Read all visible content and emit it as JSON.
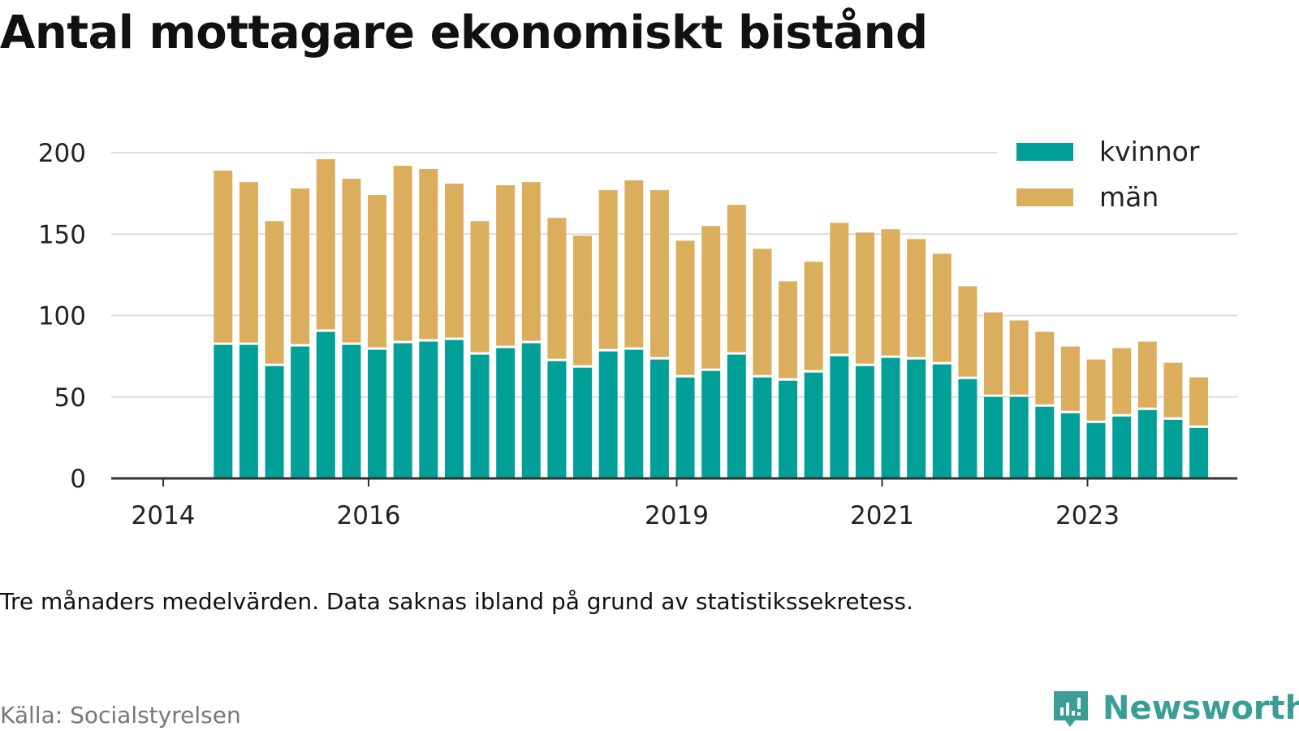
{
  "title": "Antal mottagare ekonomiskt bistånd",
  "note": "Tre månaders medelvärden. Data saknas ibland på grund av statistikssekretess.",
  "source": "Källa: Socialstyrelsen",
  "logo_text": "Newsworthy",
  "colors": {
    "kvinnor": "#00a099",
    "man": "#dbae5e",
    "grid": "#dddddd",
    "axis": "#333333",
    "logo": "#3a9e96"
  },
  "chart_data": {
    "type": "bar",
    "stacked": true,
    "ylim": [
      0,
      200
    ],
    "yticks": [
      0,
      50,
      100,
      150,
      200
    ],
    "xticks": [
      "2014",
      "2016",
      "2019",
      "2021",
      "2023"
    ],
    "grid": "horizontal",
    "legend_position": "top-right",
    "x": [
      "2014-Q3",
      "2014-Q4",
      "2015-Q1",
      "2015-Q2",
      "2015-Q3",
      "2015-Q4",
      "2016-Q1",
      "2016-Q2",
      "2016-Q3",
      "2016-Q4",
      "2017-Q1",
      "2017-Q2",
      "2017-Q3",
      "2017-Q4",
      "2018-Q1",
      "2018-Q2",
      "2018-Q3",
      "2018-Q4",
      "2019-Q1",
      "2019-Q2",
      "2019-Q3",
      "2019-Q4",
      "2020-Q1",
      "2020-Q2",
      "2020-Q3",
      "2020-Q4",
      "2021-Q1",
      "2021-Q2",
      "2021-Q3",
      "2021-Q4",
      "2022-Q1",
      "2022-Q2",
      "2022-Q3",
      "2022-Q4",
      "2023-Q1",
      "2023-Q2",
      "2023-Q3",
      "2023-Q4",
      "2024-Q1"
    ],
    "series": [
      {
        "name": "kvinnor",
        "values": [
          82,
          82,
          69,
          81,
          90,
          82,
          79,
          83,
          84,
          85,
          76,
          80,
          83,
          72,
          68,
          78,
          79,
          73,
          62,
          66,
          76,
          62,
          60,
          65,
          75,
          69,
          74,
          73,
          70,
          61,
          50,
          50,
          44,
          40,
          34,
          38,
          42,
          36,
          31
        ]
      },
      {
        "name": "män",
        "values": [
          107,
          100,
          89,
          97,
          106,
          102,
          95,
          109,
          106,
          96,
          82,
          100,
          99,
          88,
          81,
          99,
          104,
          104,
          84,
          89,
          92,
          79,
          61,
          68,
          82,
          82,
          79,
          74,
          68,
          57,
          52,
          47,
          46,
          41,
          39,
          42,
          42,
          35,
          31
        ]
      }
    ]
  }
}
